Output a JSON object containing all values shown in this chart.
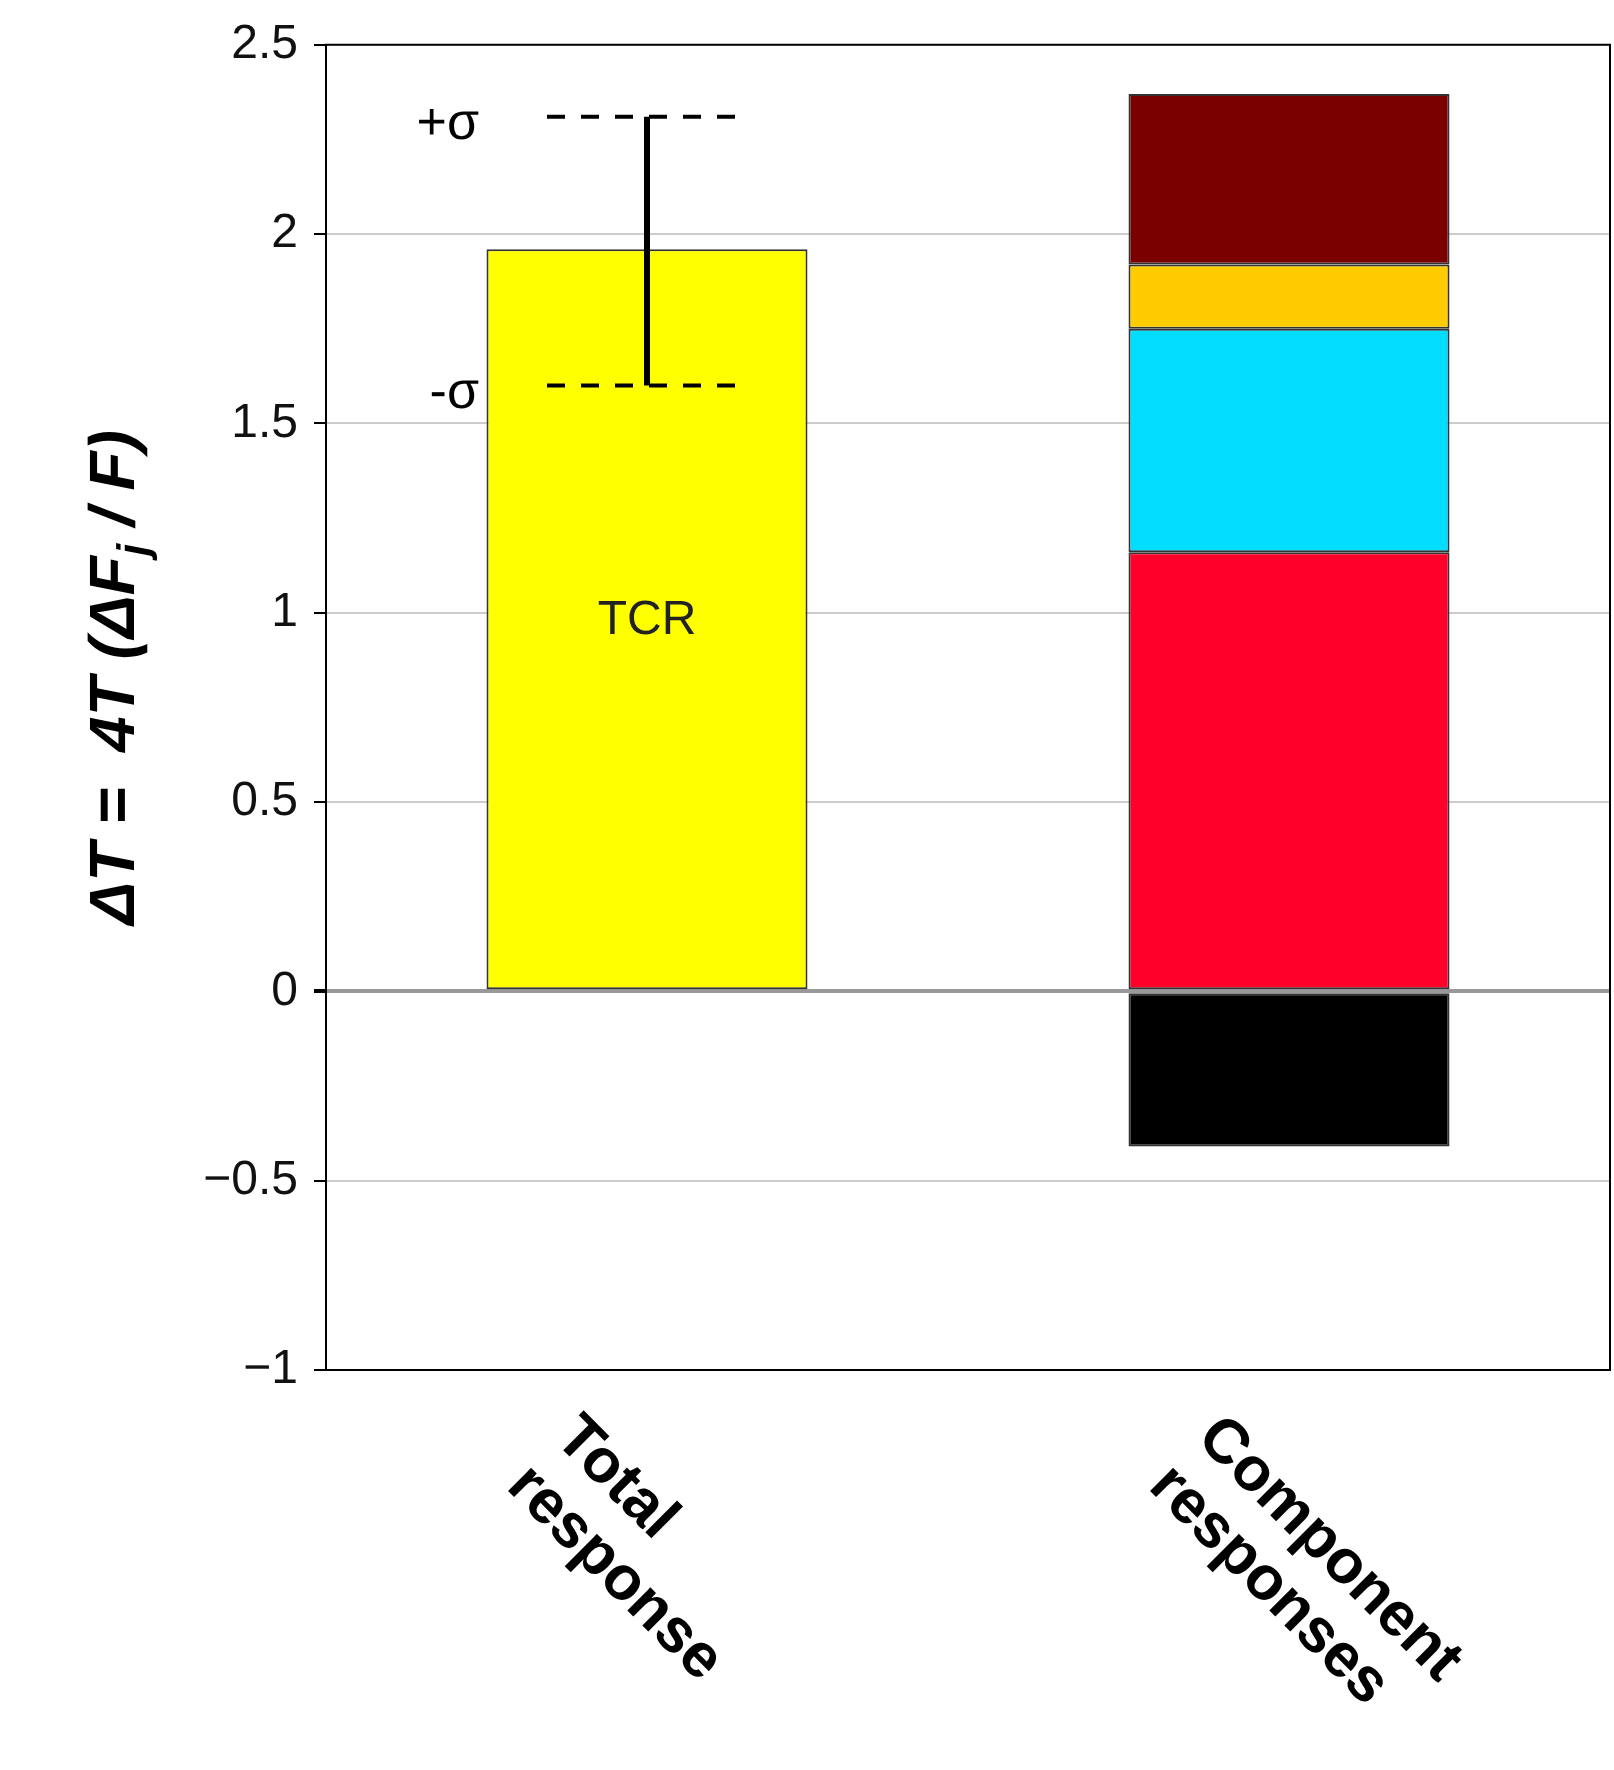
{
  "chart_data": {
    "type": "bar",
    "stacked": true,
    "categories": [
      "Total response",
      "Component responses"
    ],
    "ylabel": "ΔT =  4T (ΔF$_{j}$ / F)",
    "series": [
      {
        "name": "TCR",
        "color": "#ffff00",
        "values": [
          1.96,
          null
        ],
        "errors": [
          [
            1.6,
            2.31
          ],
          null
        ]
      },
      {
        "color": "#000000",
        "values": [
          null,
          -0.41
        ]
      },
      {
        "color": "#ff002a",
        "values": [
          null,
          1.16
        ]
      },
      {
        "color": "#00ddff",
        "values": [
          null,
          0.59
        ]
      },
      {
        "color": "#ffcc00",
        "values": [
          null,
          0.17
        ]
      },
      {
        "color": "#7a0000",
        "values": [
          null,
          0.45
        ]
      }
    ],
    "annotations": [
      "+σ",
      "-σ"
    ],
    "ylim": [
      -1,
      2.5
    ],
    "yticks": [
      {
        "value": -1,
        "label": "−1"
      },
      {
        "value": -0.5,
        "label": "−0.5"
      },
      0,
      0.5,
      1,
      1.5,
      2,
      2.5
    ],
    "grid": "y",
    "legend": false
  }
}
